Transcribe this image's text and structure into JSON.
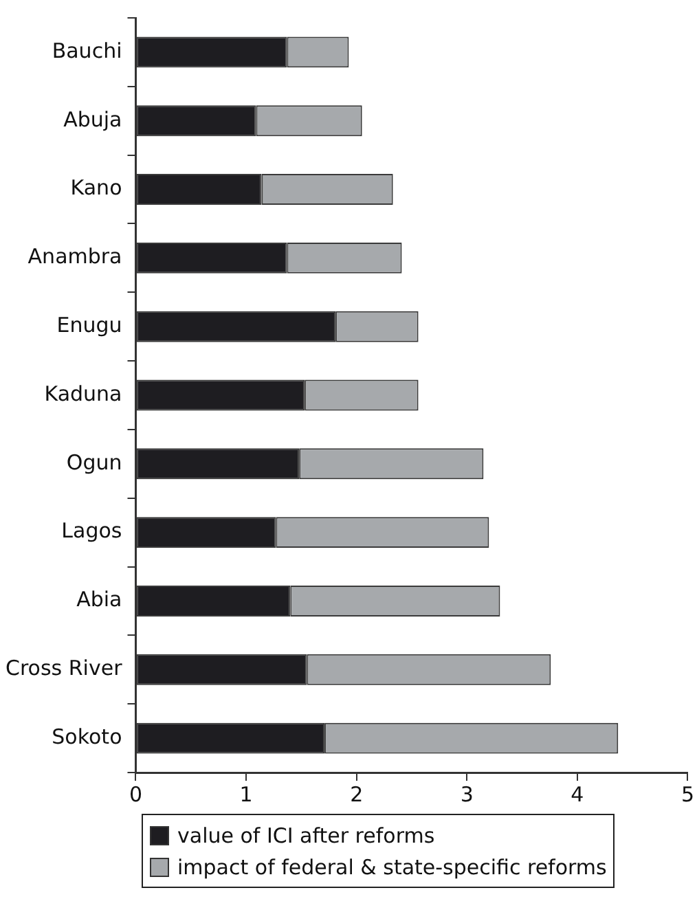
{
  "chart_data": {
    "type": "bar",
    "orientation": "horizontal",
    "stacked": true,
    "categories": [
      "Bauchi",
      "Abuja",
      "Kano",
      "Anambra",
      "Enugu",
      "Kaduna",
      "Ogun",
      "Lagos",
      "Abia",
      "Cross River",
      "Sokoto"
    ],
    "series": [
      {
        "name": "value of ICI after reforms",
        "color": "#1e1d21",
        "values": [
          1.37,
          1.09,
          1.14,
          1.37,
          1.81,
          1.53,
          1.48,
          1.27,
          1.4,
          1.55,
          1.71
        ]
      },
      {
        "name": "impact of federal & state-specific reforms",
        "color": "#a6a9ac",
        "values": [
          0.56,
          0.96,
          1.19,
          1.04,
          0.75,
          1.03,
          1.67,
          1.93,
          1.9,
          2.21,
          2.66
        ]
      }
    ],
    "xlim": [
      0,
      5
    ],
    "xticks": [
      0,
      1,
      2,
      3,
      4,
      5
    ],
    "grid": false,
    "legend": "bottom"
  }
}
